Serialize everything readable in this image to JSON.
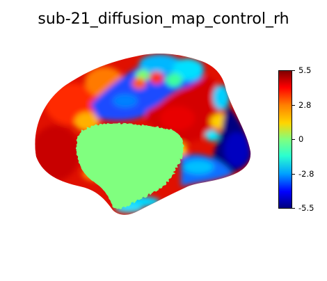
{
  "figure": {
    "title": "sub-21_diffusion_map_control_rh"
  },
  "colorbar": {
    "colormap": "jet",
    "colors": [
      "#7f0000",
      "#ff0000",
      "#ff8000",
      "#ffd500",
      "#80ff7f",
      "#2affd0",
      "#00a0ff",
      "#0000ff",
      "#00007f"
    ],
    "vmin": -5.5,
    "vmax": 5.5,
    "ticks": [
      {
        "value": 5.5,
        "label": "5.5"
      },
      {
        "value": 2.8,
        "label": "2.8"
      },
      {
        "value": 0,
        "label": "0"
      },
      {
        "value": -2.8,
        "label": "-2.8"
      },
      {
        "value": -5.5,
        "label": "-5.5"
      }
    ]
  },
  "brain": {
    "view": "medial",
    "hemisphere": "rh",
    "medial_wall_color": "#80ff7f"
  }
}
